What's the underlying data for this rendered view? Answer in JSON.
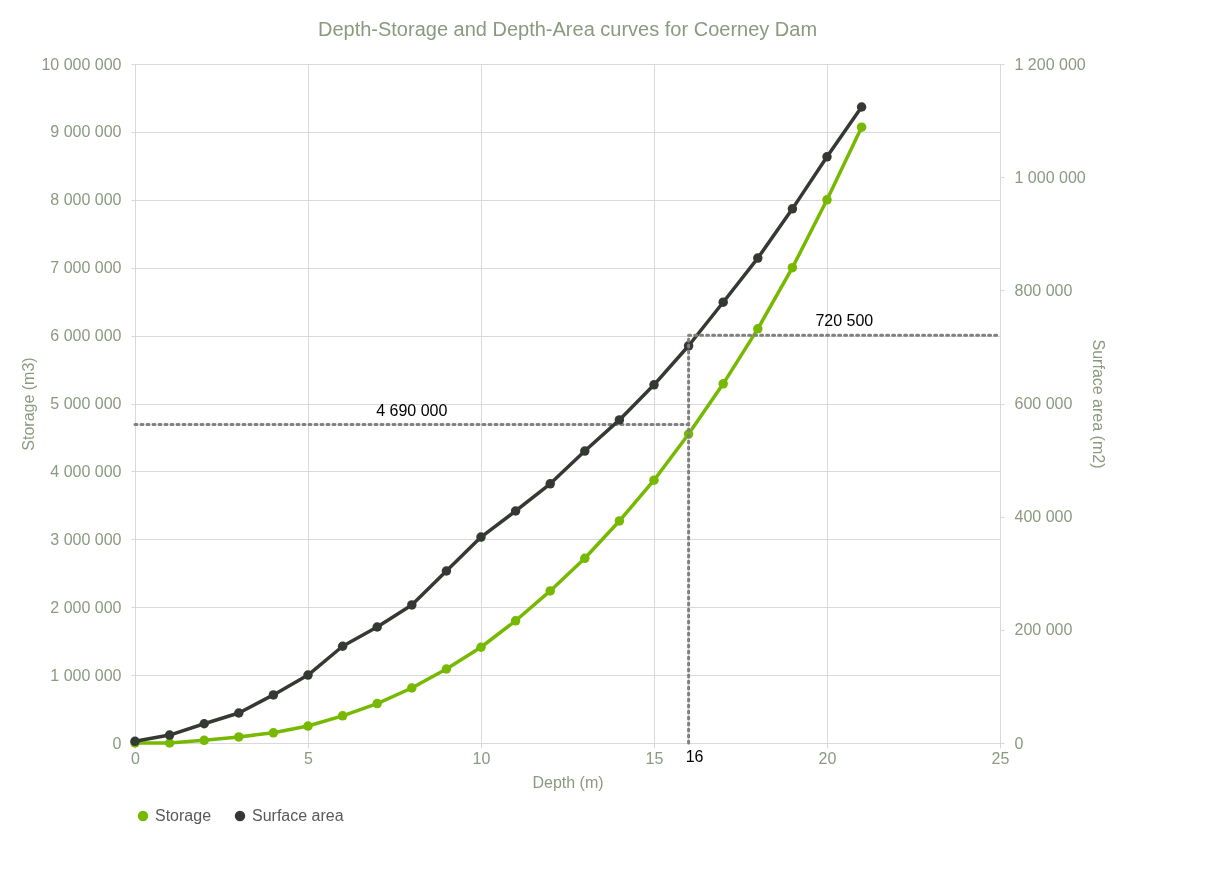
{
  "chart_data": {
    "type": "line",
    "title": "Depth-Storage and Depth-Area curves for Coerney Dam",
    "xlabel": "Depth (m)",
    "ylabel": "Storage (m3)",
    "y2label": "Surface area (m2)",
    "x": [
      0,
      1,
      2,
      3,
      4,
      5,
      6,
      7,
      8,
      9,
      10,
      11,
      12,
      13,
      14,
      15,
      16,
      17,
      18,
      19,
      20,
      21
    ],
    "series": [
      {
        "name": "Storage",
        "color": "#76b900",
        "values": [
          0,
          0,
          40000,
          90000,
          150000,
          250000,
          400000,
          580000,
          810000,
          1090000,
          1410000,
          1800000,
          2240000,
          2720000,
          3270000,
          3870000,
          4550000,
          5290000,
          6100000,
          7000000,
          8000000,
          9070000
        ]
      },
      {
        "name": "Surface area",
        "color": "#343a33",
        "axis": "y2",
        "values": [
          3000,
          14000,
          34000,
          53000,
          85000,
          120000,
          171000,
          205000,
          244000,
          304000,
          364000,
          410000,
          458000,
          516000,
          571000,
          633000,
          702000,
          779000,
          857000,
          944000,
          1036000,
          1124000
        ]
      }
    ],
    "xlim": [
      0,
      25
    ],
    "xticks": [
      0,
      5,
      10,
      15,
      20,
      25
    ],
    "ylim": [
      0,
      10000000
    ],
    "yticks": [
      {
        "value": 0,
        "label": "0"
      },
      {
        "value": 1000000,
        "label": "1 000 000"
      },
      {
        "value": 2000000,
        "label": "2 000 000"
      },
      {
        "value": 3000000,
        "label": "3 000 000"
      },
      {
        "value": 4000000,
        "label": "4 000 000"
      },
      {
        "value": 5000000,
        "label": "5 000 000"
      },
      {
        "value": 6000000,
        "label": "6 000 000"
      },
      {
        "value": 7000000,
        "label": "7 000 000"
      },
      {
        "value": 8000000,
        "label": "8 000 000"
      },
      {
        "value": 9000000,
        "label": "9 000 000"
      },
      {
        "value": 10000000,
        "label": "10 000 000"
      }
    ],
    "y2lim": [
      0,
      1200000
    ],
    "y2ticks": [
      {
        "value": 0,
        "label": "0"
      },
      {
        "value": 200000,
        "label": "200 000"
      },
      {
        "value": 400000,
        "label": "400 000"
      },
      {
        "value": 600000,
        "label": "600 000"
      },
      {
        "value": 800000,
        "label": "800 000"
      },
      {
        "value": 1000000,
        "label": "1 000 000"
      },
      {
        "value": 1200000,
        "label": "1 200 000"
      }
    ],
    "ref_lines": [
      {
        "axis": "y",
        "value": 4690000,
        "label": "4 690 000",
        "color": "#808080",
        "line_style": "dotted"
      },
      {
        "axis": "y2",
        "value": 720500,
        "label": "720 500",
        "color": "#808080",
        "line_style": "dotted"
      },
      {
        "axis": "x",
        "value": 16,
        "label": "16",
        "color": "#808080",
        "line_style": "dotted"
      }
    ],
    "grid": true,
    "legend": "bottom",
    "marker": "circle",
    "line_style": "solid"
  }
}
